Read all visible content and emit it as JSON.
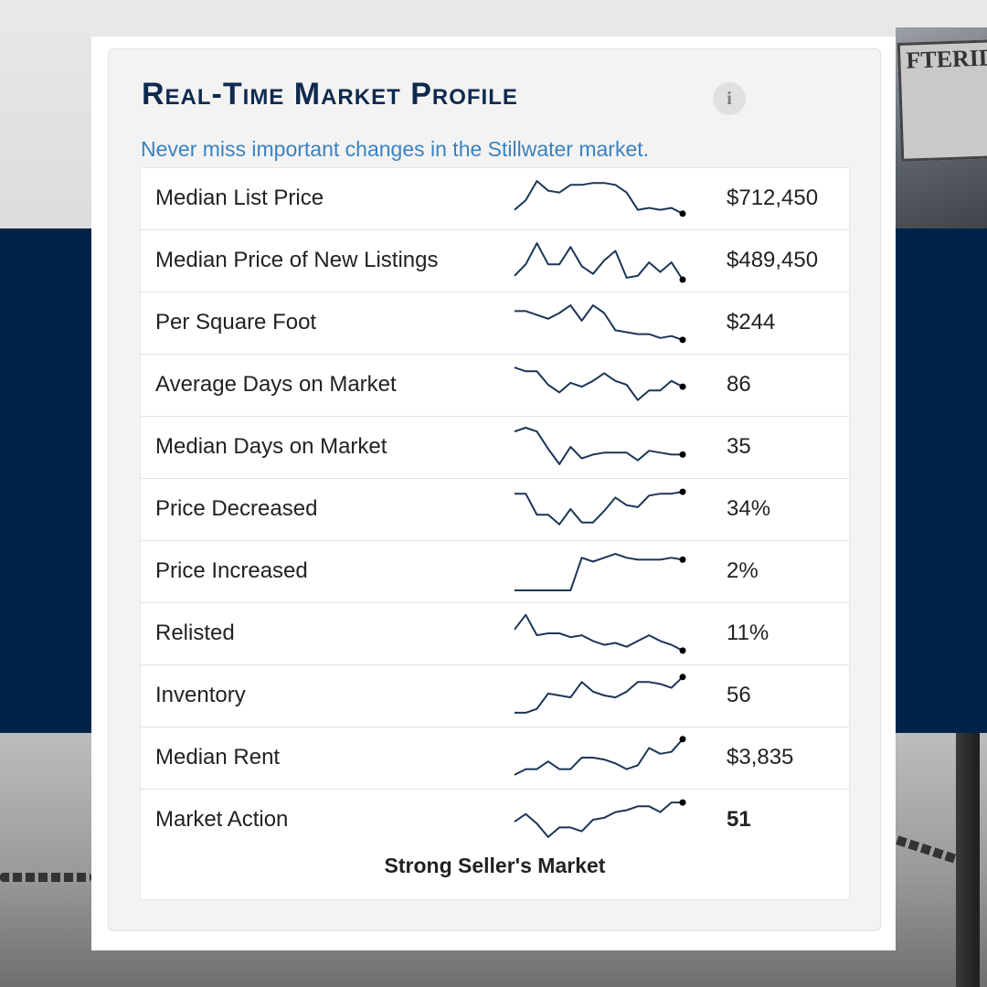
{
  "title": "Real-Time Market Profile",
  "info_icon": "i",
  "subtitle": "Never miss important changes in the Stillwater market.",
  "background_sign_text": "FTERID TO HE ON RE",
  "rows": [
    {
      "label": "Median List Price",
      "value": "$712,450",
      "bold": false,
      "trend": [
        0.2,
        0.45,
        0.95,
        0.7,
        0.65,
        0.85,
        0.85,
        0.9,
        0.9,
        0.85,
        0.65,
        0.2,
        0.25,
        0.2,
        0.25,
        0.1
      ]
    },
    {
      "label": "Median Price of New Listings",
      "value": "$489,450",
      "bold": false,
      "trend": [
        0.1,
        0.4,
        0.95,
        0.4,
        0.4,
        0.85,
        0.35,
        0.15,
        0.5,
        0.75,
        0.05,
        0.1,
        0.45,
        0.2,
        0.45,
        0.0
      ]
    },
    {
      "label": "Per Square Foot",
      "value": "$244",
      "bold": false,
      "trend": [
        0.8,
        0.8,
        0.7,
        0.6,
        0.75,
        0.95,
        0.55,
        0.95,
        0.75,
        0.3,
        0.25,
        0.2,
        0.2,
        0.1,
        0.15,
        0.05
      ]
    },
    {
      "label": "Average Days on Market",
      "value": "86",
      "bold": false,
      "trend": [
        0.95,
        0.85,
        0.85,
        0.5,
        0.3,
        0.55,
        0.45,
        0.6,
        0.8,
        0.6,
        0.5,
        0.1,
        0.35,
        0.35,
        0.6,
        0.45
      ]
    },
    {
      "label": "Median Days on Market",
      "value": "35",
      "bold": false,
      "trend": [
        0.9,
        1.0,
        0.9,
        0.45,
        0.05,
        0.5,
        0.2,
        0.3,
        0.35,
        0.35,
        0.35,
        0.15,
        0.4,
        0.35,
        0.3,
        0.3
      ]
    },
    {
      "label": "Price Decreased",
      "value": "34%",
      "bold": false,
      "trend": [
        0.9,
        0.9,
        0.35,
        0.35,
        0.1,
        0.5,
        0.15,
        0.15,
        0.45,
        0.8,
        0.6,
        0.55,
        0.85,
        0.9,
        0.9,
        0.95
      ]
    },
    {
      "label": "Price Increased",
      "value": "2%",
      "bold": false,
      "trend": [
        0.0,
        0.0,
        0.0,
        0.0,
        0.0,
        0.0,
        0.85,
        0.75,
        0.85,
        0.95,
        0.85,
        0.8,
        0.8,
        0.8,
        0.85,
        0.8
      ]
    },
    {
      "label": "Relisted",
      "value": "11%",
      "bold": false,
      "trend": [
        0.6,
        0.98,
        0.45,
        0.5,
        0.5,
        0.4,
        0.45,
        0.3,
        0.2,
        0.25,
        0.15,
        0.3,
        0.45,
        0.3,
        0.2,
        0.05
      ]
    },
    {
      "label": "Inventory",
      "value": "56",
      "bold": false,
      "trend": [
        0.05,
        0.05,
        0.15,
        0.55,
        0.5,
        0.45,
        0.85,
        0.6,
        0.5,
        0.45,
        0.6,
        0.85,
        0.85,
        0.8,
        0.7,
        0.98
      ]
    },
    {
      "label": "Median Rent",
      "value": "$3,835",
      "bold": false,
      "trend": [
        0.05,
        0.2,
        0.2,
        0.4,
        0.2,
        0.2,
        0.5,
        0.5,
        0.45,
        0.35,
        0.2,
        0.3,
        0.75,
        0.6,
        0.65,
        0.98
      ]
    },
    {
      "label": "Market Action",
      "value": "51",
      "bold": true,
      "trend": [
        0.45,
        0.65,
        0.4,
        0.05,
        0.3,
        0.3,
        0.2,
        0.5,
        0.55,
        0.7,
        0.75,
        0.85,
        0.85,
        0.7,
        0.95,
        0.95
      ]
    }
  ],
  "market_status": "Strong Seller's Market",
  "colors": {
    "navy_band": "#002449",
    "title": "#0f2a4f",
    "subtitle": "#3a82c0",
    "sparkline": "#1c3557"
  },
  "icons": {
    "info": "info-icon"
  }
}
